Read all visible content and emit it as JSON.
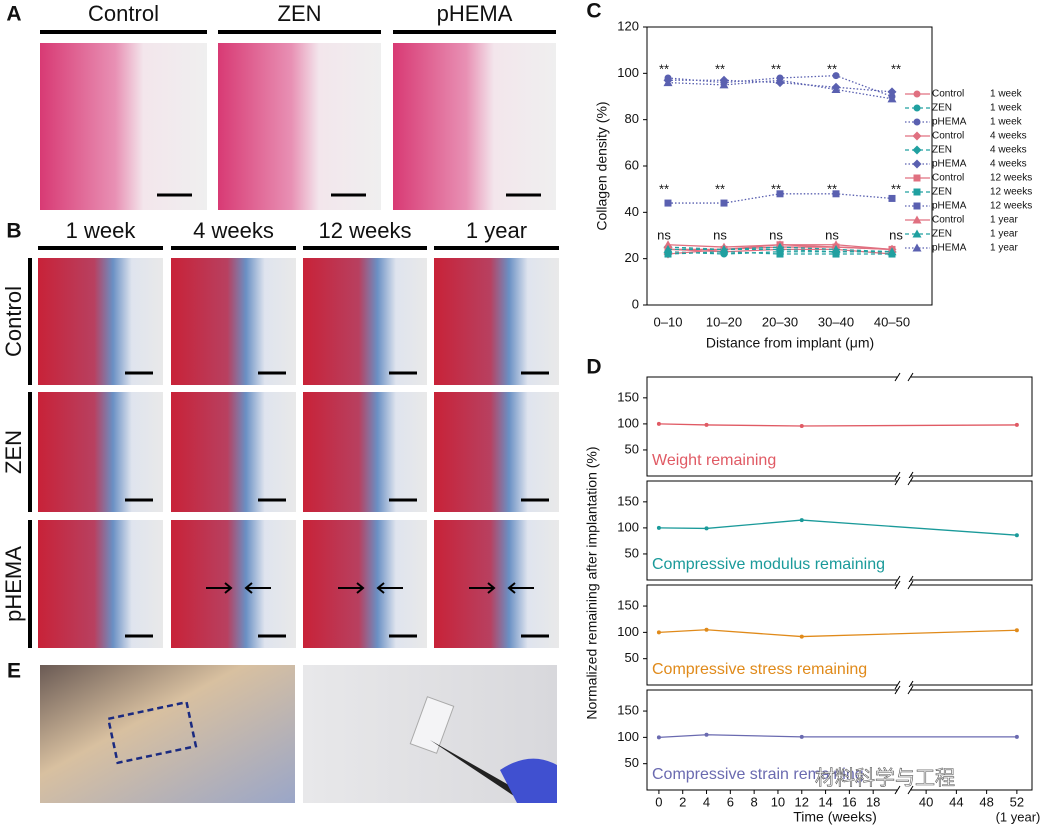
{
  "figure": {
    "panel_labels": [
      "A",
      "B",
      "C",
      "D",
      "E"
    ]
  },
  "panel_a": {
    "columns": [
      "Control",
      "ZEN",
      "pHEMA"
    ]
  },
  "panel_b": {
    "columns": [
      "1 week",
      "4 weeks",
      "12 weeks",
      "1 year"
    ],
    "rows": [
      "Control",
      "ZEN",
      "pHEMA"
    ]
  },
  "watermark": "材料科学与工程",
  "chart_data": [
    {
      "type": "line",
      "ylabel": "Collagen density (%)",
      "xlabel": "Distance from implant (μm)",
      "categories": [
        "0–10",
        "10–20",
        "20–30",
        "30–40",
        "40–50"
      ],
      "ylim": [
        0,
        120
      ],
      "yticks": [
        0,
        20,
        40,
        60,
        80,
        100,
        120
      ],
      "annotations_high": [
        "**",
        "**",
        "**",
        "**",
        "**"
      ],
      "annotations_mid": [
        "**",
        "**",
        "**",
        "**",
        "**"
      ],
      "annotations_low": [
        "ns",
        "ns",
        "ns",
        "ns",
        "ns"
      ],
      "series": [
        {
          "name": "Control",
          "period": "1 week",
          "color": "#e07080",
          "line_style": "solid",
          "marker": "circle",
          "values": [
            24,
            23,
            24,
            24,
            22
          ]
        },
        {
          "name": "ZEN",
          "period": "1 week",
          "color": "#20a0a0",
          "line_style": "dashed",
          "marker": "circle",
          "values": [
            23,
            22,
            23,
            23,
            23
          ]
        },
        {
          "name": "pHEMA",
          "period": "1 week",
          "color": "#5a60b0",
          "line_style": "dotted",
          "marker": "circle",
          "values": [
            98,
            96,
            98,
            99,
            90
          ]
        },
        {
          "name": "Control",
          "period": "4 weeks",
          "color": "#e07080",
          "line_style": "solid",
          "marker": "diamond",
          "values": [
            22,
            24,
            25,
            25,
            24
          ]
        },
        {
          "name": "ZEN",
          "period": "4 weeks",
          "color": "#20a0a0",
          "line_style": "dashed",
          "marker": "diamond",
          "values": [
            25,
            24,
            24,
            23,
            23
          ]
        },
        {
          "name": "pHEMA",
          "period": "4 weeks",
          "color": "#5a60b0",
          "line_style": "dotted",
          "marker": "diamond",
          "values": [
            97,
            97,
            96,
            94,
            92
          ]
        },
        {
          "name": "Control",
          "period": "12 weeks",
          "color": "#e07080",
          "line_style": "solid",
          "marker": "square",
          "values": [
            24,
            24,
            26,
            25,
            24
          ]
        },
        {
          "name": "ZEN",
          "period": "12 weeks",
          "color": "#20a0a0",
          "line_style": "dashed",
          "marker": "square",
          "values": [
            22,
            23,
            22,
            22,
            22
          ]
        },
        {
          "name": "pHEMA",
          "period": "12 weeks",
          "color": "#5a60b0",
          "line_style": "dotted",
          "marker": "square",
          "values": [
            44,
            44,
            48,
            48,
            46
          ]
        },
        {
          "name": "Control",
          "period": "1 year",
          "color": "#e07080",
          "line_style": "solid",
          "marker": "triangle",
          "values": [
            26,
            25,
            26,
            26,
            24
          ]
        },
        {
          "name": "ZEN",
          "period": "1 year",
          "color": "#20a0a0",
          "line_style": "dashed",
          "marker": "triangle",
          "values": [
            24,
            24,
            25,
            24,
            23
          ]
        },
        {
          "name": "pHEMA",
          "period": "1 year",
          "color": "#5a60b0",
          "line_style": "dotted",
          "marker": "triangle",
          "values": [
            96,
            95,
            97,
            93,
            89
          ]
        }
      ]
    },
    {
      "type": "line",
      "ylabel": "Normalized remaining after implantation (%)",
      "xlabel": "Time (weeks)",
      "x": [
        0,
        4,
        12,
        52
      ],
      "xlim": [
        -1,
        54
      ],
      "xbreak": [
        20,
        38
      ],
      "xticks": [
        0,
        2,
        4,
        6,
        8,
        10,
        12,
        14,
        16,
        18,
        40,
        44,
        48,
        52
      ],
      "x_note": "(1 year)",
      "ylim": [
        0,
        190
      ],
      "yticks": [
        50,
        100,
        150
      ],
      "series": [
        {
          "name": "Weight remaining",
          "color": "#e05a64",
          "values": [
            100,
            98,
            96,
            98
          ]
        },
        {
          "name": "Compressive modulus remaining",
          "color": "#1a9a9a",
          "values": [
            100,
            99,
            115,
            86
          ]
        },
        {
          "name": "Compressive stress remaining",
          "color": "#e08a1a",
          "values": [
            100,
            105,
            92,
            104
          ]
        },
        {
          "name": "Compressive strain remaining",
          "color": "#6a6ab0",
          "values": [
            100,
            105,
            101,
            101
          ]
        }
      ]
    }
  ]
}
